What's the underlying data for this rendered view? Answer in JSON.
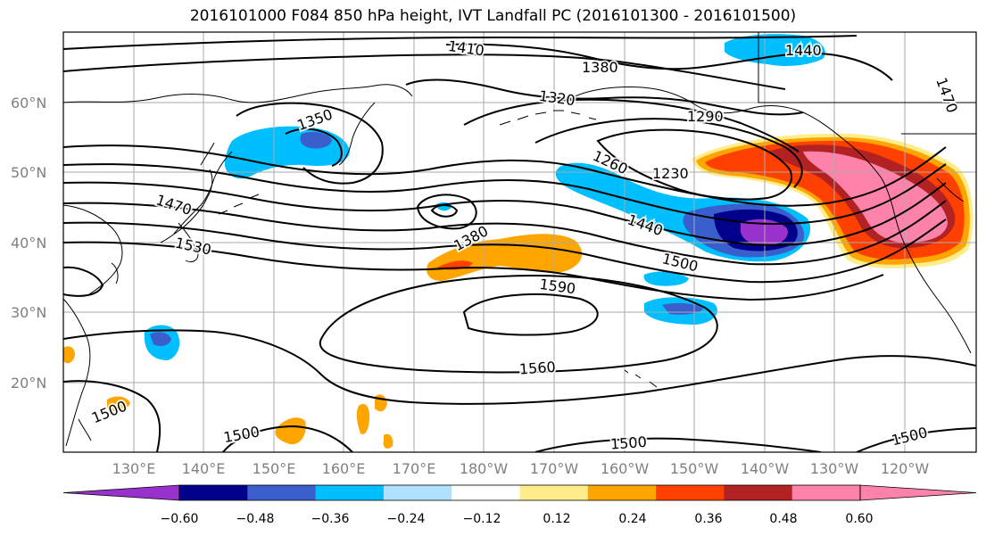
{
  "title": "2016101000 F084 850 hPa height, IVT Landfall PC (2016101300 - 2016101500)",
  "longitude_ticks": [
    "130°E",
    "140°E",
    "150°E",
    "160°E",
    "170°E",
    "180°W",
    "170°W",
    "160°W",
    "150°W",
    "140°W",
    "130°W",
    "120°W"
  ],
  "latitude_ticks": [
    "60°N",
    "50°N",
    "40°N",
    "30°N",
    "20°N"
  ],
  "contour_labels": [
    "1410",
    "1380",
    "1440",
    "1350",
    "1320",
    "1290",
    "1260",
    "1230",
    "1470",
    "1380",
    "1440",
    "1530",
    "1500",
    "1590",
    "1560",
    "1500",
    "1500",
    "1500",
    "1500",
    "1470"
  ],
  "colorbar": {
    "tick_labels": [
      "−0.60",
      "−0.48",
      "−0.36",
      "−0.24",
      "−0.12",
      "0.12",
      "0.24",
      "0.36",
      "0.48",
      "0.60"
    ],
    "colors": [
      "#9932cc",
      "#00008b",
      "#3a5fcd",
      "#00bfff",
      "#b0e2ff",
      "#ffffff",
      "#ffec8b",
      "#ffa500",
      "#ff4000",
      "#b22222",
      "#ff82ab",
      "#ff82ab"
    ]
  }
}
